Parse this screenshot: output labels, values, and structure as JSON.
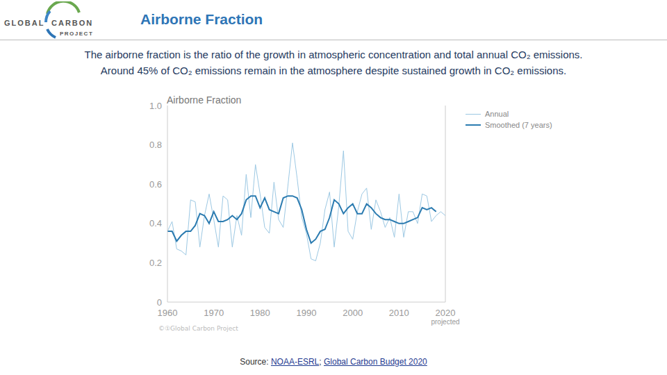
{
  "slide": {
    "logo": {
      "words": [
        "GLOBAL",
        "CARBON",
        "PROJECT"
      ]
    },
    "title": "Airborne Fraction",
    "description": [
      "The airborne fraction is the ratio of the growth in atmospheric concentration and total annual CO₂ emissions.",
      "Around 45% of CO₂ emissions remain in the atmosphere despite sustained growth in CO₂ emissions."
    ],
    "watermark": "©①Global Carbon Project",
    "source": {
      "label": "Source:",
      "links": [
        "NOAA-ESRL",
        "Global Carbon Budget 2020"
      ],
      "separator": ";"
    }
  },
  "chart_data": {
    "type": "line",
    "title": "Airborne Fraction",
    "x": [
      1960,
      1961,
      1962,
      1963,
      1964,
      1965,
      1966,
      1967,
      1968,
      1969,
      1970,
      1971,
      1972,
      1973,
      1974,
      1975,
      1976,
      1977,
      1978,
      1979,
      1980,
      1981,
      1982,
      1983,
      1984,
      1985,
      1986,
      1987,
      1988,
      1989,
      1990,
      1991,
      1992,
      1993,
      1994,
      1995,
      1996,
      1997,
      1998,
      1999,
      2000,
      2001,
      2002,
      2003,
      2004,
      2005,
      2006,
      2007,
      2008,
      2009,
      2010,
      2011,
      2012,
      2013,
      2014,
      2015,
      2016,
      2017,
      2018,
      2019,
      2020
    ],
    "series": [
      {
        "name": "Annual",
        "color": "#9cc8e3",
        "values": [
          0.36,
          0.41,
          0.27,
          0.26,
          0.24,
          0.52,
          0.51,
          0.28,
          0.44,
          0.55,
          0.42,
          0.28,
          0.54,
          0.52,
          0.28,
          0.44,
          0.34,
          0.65,
          0.43,
          0.7,
          0.55,
          0.38,
          0.35,
          0.61,
          0.42,
          0.38,
          0.59,
          0.81,
          0.63,
          0.43,
          0.35,
          0.22,
          0.21,
          0.3,
          0.47,
          0.56,
          0.28,
          0.49,
          0.77,
          0.36,
          0.32,
          0.46,
          0.55,
          0.58,
          0.37,
          0.52,
          0.46,
          0.38,
          0.43,
          0.33,
          0.55,
          0.33,
          0.46,
          0.46,
          0.4,
          0.55,
          0.54,
          0.41,
          0.44,
          0.46,
          0.44
        ]
      },
      {
        "name": "Smoothed (7 years)",
        "color": "#2b7bb0",
        "values": [
          0.36,
          0.36,
          0.31,
          0.34,
          0.36,
          0.36,
          0.39,
          0.45,
          0.44,
          0.4,
          0.46,
          0.41,
          0.41,
          0.42,
          0.44,
          0.42,
          0.45,
          0.52,
          0.54,
          0.54,
          0.48,
          0.53,
          0.47,
          0.46,
          0.45,
          0.53,
          0.54,
          0.54,
          0.53,
          0.47,
          0.37,
          0.3,
          0.32,
          0.36,
          0.37,
          0.43,
          0.52,
          0.5,
          0.45,
          0.48,
          0.5,
          0.45,
          0.45,
          0.5,
          0.48,
          0.45,
          0.43,
          0.42,
          0.42,
          0.41,
          0.4,
          0.4,
          0.41,
          0.42,
          0.43,
          0.48,
          0.47,
          0.48,
          0.46,
          null,
          null
        ]
      }
    ],
    "xlim": [
      1960,
      2020
    ],
    "xticks": [
      1960,
      1970,
      1980,
      1990,
      2000,
      2010,
      2020
    ],
    "ylim": [
      0,
      1
    ],
    "yticks": [
      0,
      0.2,
      0.4,
      0.6,
      0.8,
      {
        "value": 1,
        "label": "1.0"
      }
    ],
    "annotations": [
      {
        "x": 2020,
        "text": "projected"
      }
    ],
    "grid": false,
    "legend": "upper right"
  }
}
